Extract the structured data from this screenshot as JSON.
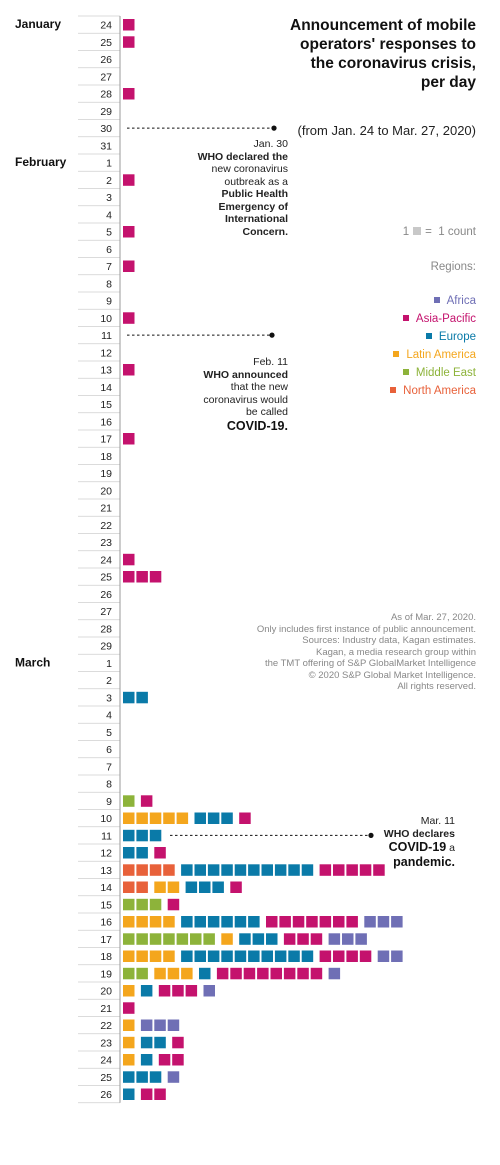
{
  "title": "Announcement of mobile operators' responses to the coronavirus crisis, per day",
  "subtitle": "(from Jan. 24 to Mar. 27, 2020)",
  "scale": {
    "number": "1",
    "equals": "=",
    "text": "1 count"
  },
  "regions_title": "Regions:",
  "notes": [
    "As of Mar. 27, 2020.",
    "Only includes first instance of public announcement.",
    "Sources: Industry data, Kagan estimates.",
    "Kagan, a media research group within",
    "the TMT offering of S&P GlobalMarket Intelligence",
    "© 2020 S&P Global Market Intelligence.",
    "All rights reserved."
  ],
  "annotations": {
    "jan30": {
      "date": "Jan. 30",
      "l1": "WHO declared the",
      "l2": "new coronavirus",
      "l3a": "outbreak as a",
      "l4": "Public Health",
      "l5": "Emergency of",
      "l6": "International",
      "l7": "Concern."
    },
    "feb11": {
      "date": "Feb. 11",
      "l1": "WHO announced",
      "l2": "that the new",
      "l3": "coronavirus would",
      "l4": "be called",
      "l5": "COVID-19."
    },
    "mar11": {
      "date": "Mar. 11",
      "l1": "WHO declares",
      "l2a": "COVID-19",
      "l2b": " a",
      "l3": "pandemic."
    }
  },
  "chart_data": {
    "type": "unit-bar",
    "unit": "1 count",
    "months": [
      {
        "name": "January",
        "days": [
          24,
          25,
          26,
          27,
          28,
          29,
          30,
          31
        ]
      },
      {
        "name": "February",
        "days": [
          1,
          2,
          3,
          4,
          5,
          6,
          7,
          8,
          9,
          10,
          11,
          12,
          13,
          14,
          15,
          16,
          17,
          18,
          19,
          20,
          21,
          22,
          23,
          24,
          25,
          26,
          27,
          28,
          29
        ]
      },
      {
        "name": "March",
        "days": [
          1,
          2,
          3,
          4,
          5,
          6,
          7,
          8,
          9,
          10,
          11,
          12,
          13,
          14,
          15,
          16,
          17,
          18,
          19,
          20,
          21,
          22,
          23,
          24,
          25,
          26
        ]
      }
    ],
    "regions": [
      {
        "key": "africa",
        "name": "Africa",
        "color": "#6f6fb5"
      },
      {
        "key": "asia",
        "name": "Asia-Pacific",
        "color": "#c4126d"
      },
      {
        "key": "europe",
        "name": "Europe",
        "color": "#0a7aa8"
      },
      {
        "key": "latam",
        "name": "Latin America",
        "color": "#f4a61d"
      },
      {
        "key": "me",
        "name": "Middle East",
        "color": "#8db33a"
      },
      {
        "key": "na",
        "name": "North America",
        "color": "#e8613a"
      }
    ],
    "counts": {
      "Jan 24": {
        "asia": 1
      },
      "Jan 25": {
        "asia": 1
      },
      "Jan 28": {
        "asia": 1
      },
      "Feb 2": {
        "asia": 1
      },
      "Feb 5": {
        "asia": 1
      },
      "Feb 7": {
        "asia": 1
      },
      "Feb 10": {
        "asia": 1
      },
      "Feb 13": {
        "asia": 1
      },
      "Feb 17": {
        "asia": 1
      },
      "Feb 24": {
        "asia": 1
      },
      "Feb 25": {
        "asia": 3
      },
      "Mar 3": {
        "europe": 2
      },
      "Mar 9": {
        "me": 1,
        "asia": 1
      },
      "Mar 10": {
        "latam": 5,
        "europe": 3,
        "asia": 1
      },
      "Mar 11": {
        "europe": 3
      },
      "Mar 12": {
        "europe": 2,
        "asia": 1
      },
      "Mar 13": {
        "na": 4,
        "europe": 10,
        "asia": 5
      },
      "Mar 14": {
        "na": 2,
        "latam": 2,
        "europe": 3,
        "asia": 1
      },
      "Mar 15": {
        "me": 3,
        "asia": 1
      },
      "Mar 16": {
        "latam": 4,
        "europe": 6,
        "asia": 7,
        "africa": 3
      },
      "Mar 17": {
        "me": 7,
        "latam": 1,
        "europe": 3,
        "asia": 3,
        "africa": 3
      },
      "Mar 18": {
        "latam": 4,
        "europe": 10,
        "asia": 4,
        "africa": 2
      },
      "Mar 19": {
        "me": 2,
        "latam": 3,
        "europe": 1,
        "asia": 8,
        "africa": 1
      },
      "Mar 20": {
        "latam": 1,
        "europe": 1,
        "asia": 3,
        "africa": 1
      },
      "Mar 21": {
        "asia": 1
      },
      "Mar 22": {
        "latam": 1,
        "africa": 3
      },
      "Mar 23": {
        "latam": 1,
        "europe": 2,
        "asia": 1
      },
      "Mar 24": {
        "latam": 1,
        "europe": 1,
        "asia": 2
      },
      "Mar 25": {
        "europe": 3,
        "africa": 1
      },
      "Mar 26": {
        "europe": 1,
        "asia": 2
      }
    }
  }
}
